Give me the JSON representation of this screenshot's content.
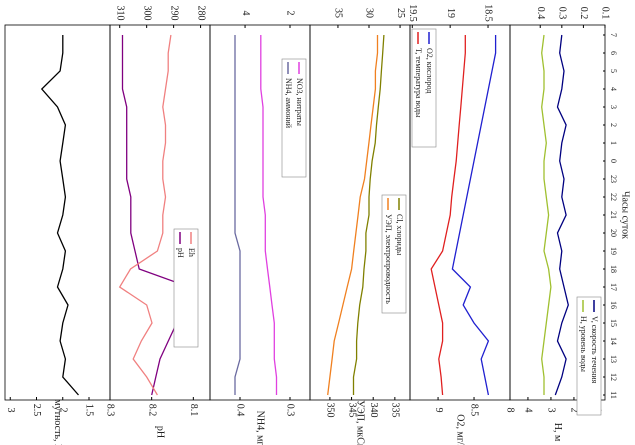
{
  "chart_data": [
    {
      "type": "line",
      "xlabel": "Часы суток",
      "categories": [
        "11",
        "12",
        "13",
        "14",
        "15",
        "16",
        "17",
        "18",
        "19",
        "20",
        "21",
        "22",
        "23",
        "0",
        "1",
        "2",
        "3",
        "4",
        "5",
        "6",
        "7"
      ],
      "ylabel": "мутность, NTU",
      "ylim": [
        3.1,
        1.1
      ],
      "yticks": [
        3,
        2.5,
        2,
        1.5
      ],
      "color": "#000000",
      "values": [
        1.7,
        2.0,
        1.95,
        2.05,
        2.0,
        1.9,
        2.1,
        2.0,
        1.95,
        2.1,
        2.0,
        1.95,
        2.0,
        2.05,
        2.0,
        1.95,
        2.1,
        2.4,
        2.05,
        2.0,
        2.0
      ]
    },
    {
      "type": "line",
      "ylabel": "pH",
      "ylim": [
        8.3,
        8.06
      ],
      "yticks": [
        8.3,
        8.2,
        8.1
      ],
      "y2lim": [
        313.6,
        276.5
      ],
      "y2ticks": [
        310,
        300,
        290,
        280
      ],
      "series": [
        {
          "name": "pH",
          "color": "#800080",
          "values": [
            8.2,
            8.19,
            8.18,
            8.16,
            8.14,
            8.12,
            8.11,
            8.23,
            8.24,
            8.25,
            8.25,
            8.25,
            8.26,
            8.26,
            8.26,
            8.26,
            8.26,
            8.27,
            8.27,
            8.27,
            8.27
          ]
        },
        {
          "name": "Eh",
          "color": "#f08080",
          "axis": "y2",
          "values": [
            296,
            300,
            305,
            302,
            298,
            300,
            310,
            306,
            296,
            294,
            294,
            293,
            294,
            294,
            293,
            293,
            294,
            293,
            292,
            292,
            291
          ]
        }
      ]
    },
    {
      "type": "line",
      "ylabel": "NH4, мг/л",
      "ylim": [
        0.46,
        0.26
      ],
      "yticks": [
        0.4,
        0.3
      ],
      "y2lim": [
        5.56,
        1.11
      ],
      "y2ticks": [
        4,
        2
      ],
      "series": [
        {
          "name": "NH4, аммоний",
          "color": "#6a6aa0",
          "values": [
            0.41,
            0.41,
            0.4,
            0.4,
            0.4,
            0.4,
            0.4,
            0.4,
            0.4,
            0.41,
            0.41,
            0.41,
            0.41,
            0.41,
            0.41,
            0.41,
            0.41,
            0.41,
            0.41,
            0.41,
            0.41
          ]
        },
        {
          "name": "NO3, нитраты",
          "color": "#e040e0",
          "axis": "y2",
          "values": [
            2.6,
            2.6,
            2.7,
            2.7,
            2.7,
            2.8,
            2.9,
            3.0,
            3.1,
            3.1,
            3.1,
            3.2,
            3.2,
            3.2,
            3.2,
            3.2,
            3.2,
            3.3,
            3.3,
            3.3,
            3.3
          ]
        }
      ]
    },
    {
      "type": "line",
      "ylabel": "УЭП, мкСм/см",
      "ylim": [
        354.6,
        331.5
      ],
      "yticks": [
        350,
        345,
        340,
        335
      ],
      "y2lim": [
        39.5,
        23.4
      ],
      "y2ticks": [
        35,
        30,
        25
      ],
      "series": [
        {
          "name": "УЭП, электропроводность",
          "color": "#f08020",
          "values": [
            350.5,
            350,
            349.5,
            349,
            348,
            347,
            346,
            345,
            344.5,
            344,
            343.5,
            343,
            342,
            341.5,
            341,
            340.5,
            340,
            339.5,
            339.5,
            339,
            339
          ]
        },
        {
          "name": "Cl, хлориды",
          "color": "#808000",
          "axis": "y2",
          "values": [
            32.5,
            32.5,
            32,
            32,
            31.8,
            31.5,
            31,
            30.8,
            30.5,
            30.5,
            30,
            30,
            29.8,
            29.5,
            29,
            28.8,
            28.5,
            28.2,
            28,
            27.8,
            27.6
          ]
        }
      ]
    },
    {
      "type": "line",
      "ylabel": "O2, мг/л",
      "ylim": [
        9.39,
        8
      ],
      "yticks": [
        9,
        8.5,
        8
      ],
      "y2lim": [
        19.53,
        18.21
      ],
      "y2ticks": [
        19.5,
        19,
        18.5
      ],
      "series": [
        {
          "name": "T, температура воды",
          "color": "#e02020",
          "axis": "y2",
          "values": [
            19.1,
            19.12,
            19.15,
            19.1,
            19.1,
            19.15,
            19.2,
            19.25,
            19.1,
            19.05,
            19.0,
            18.98,
            18.95,
            18.92,
            18.9,
            18.88,
            18.86,
            18.84,
            18.82,
            18.8,
            18.8
          ]
        },
        {
          "name": "O2, кислород",
          "color": "#2020d0",
          "values": [
            8.3,
            8.35,
            8.4,
            8.3,
            8.5,
            8.65,
            8.55,
            8.8,
            8.75,
            8.7,
            8.65,
            8.6,
            8.55,
            8.5,
            8.45,
            8.4,
            8.35,
            8.3,
            8.25,
            8.2,
            8.2
          ]
        }
      ]
    },
    {
      "type": "line",
      "ylabel": "H, м",
      "ylim": [
        4.78,
        0.65
      ],
      "yticks": [
        4,
        3,
        2,
        1
      ],
      "y2lim": [
        0.54,
        0.1
      ],
      "y2ticks": [
        0.4,
        0.3,
        0.2,
        0.1
      ],
      "series": [
        {
          "name": "H, уровень воды",
          "color": "#a0c030",
          "values": [
            3.3,
            3.3,
            3.4,
            3.3,
            3.2,
            3.1,
            3.0,
            3.1,
            3.3,
            3.2,
            3.1,
            3.2,
            3.3,
            3.3,
            3.2,
            3.3,
            3.4,
            3.3,
            3.3,
            3.4,
            3.3
          ]
        },
        {
          "name": "V, скорость течения",
          "color": "#000080",
          "axis": "y2",
          "values": [
            0.33,
            0.3,
            0.28,
            0.32,
            0.3,
            0.27,
            0.29,
            0.31,
            0.3,
            0.32,
            0.28,
            0.3,
            0.29,
            0.31,
            0.3,
            0.28,
            0.32,
            0.3,
            0.29,
            0.31,
            0.3
          ]
        }
      ]
    }
  ]
}
